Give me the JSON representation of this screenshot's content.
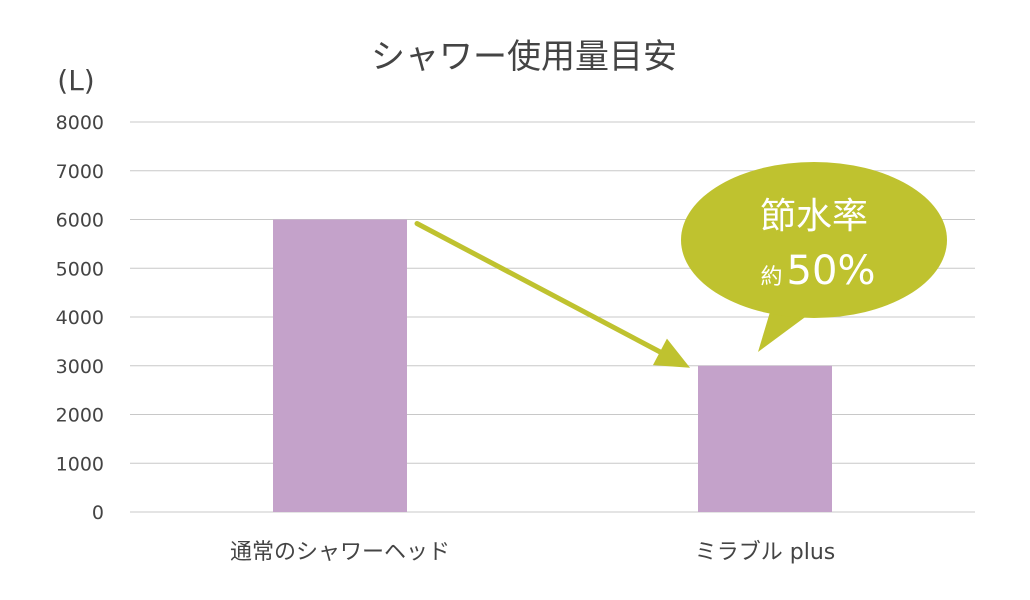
{
  "chart_data": {
    "type": "bar",
    "title": "シャワー使用量目安",
    "ylabel": "(L)",
    "xlabel": "",
    "categories": [
      "通常のシャワーヘッド",
      "ミラブル plus"
    ],
    "values": [
      6000,
      3000
    ],
    "ylim": [
      0,
      8000
    ],
    "yticks": [
      0,
      1000,
      2000,
      3000,
      4000,
      5000,
      6000,
      7000,
      8000
    ],
    "grid": true,
    "legend": "none",
    "annotation": {
      "line1": "節水率",
      "prefix": "約",
      "value": "50%"
    },
    "colors": {
      "bar": "#c4a2ca",
      "accent": "#bfc22f",
      "grid": "#c8c8c8",
      "text": "#444444"
    }
  }
}
